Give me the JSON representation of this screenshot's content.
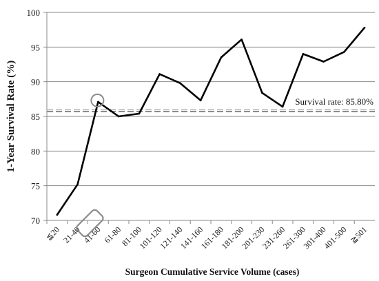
{
  "chart_data": {
    "type": "line",
    "xlabel": "Surgeon Cumulative Service Volume (cases)",
    "ylabel": "1-Year Survival Rate (%)",
    "ylim": [
      70,
      100
    ],
    "yticks": [
      "70",
      "75",
      "80",
      "85",
      "90",
      "95",
      "100"
    ],
    "grid": "horizontal",
    "categories": [
      "≦20",
      "21-40",
      "41-60",
      "61-80",
      "81-100",
      "101-120",
      "121-140",
      "141-160",
      "161-180",
      "181-200",
      "201-230",
      "231-260",
      "261-300",
      "301-400",
      "401-500",
      "≧501"
    ],
    "values": [
      70.8,
      75.2,
      87.1,
      85.0,
      85.4,
      91.1,
      89.8,
      87.3,
      93.5,
      96.1,
      88.4,
      86.4,
      94.0,
      92.9,
      94.3,
      97.8
    ],
    "series": [
      {
        "values": [
          70.8,
          75.2,
          87.1,
          85.0,
          85.4,
          91.1,
          89.8,
          87.3,
          93.5,
          96.1,
          88.4,
          86.4,
          94.0,
          92.9,
          94.3,
          97.8
        ],
        "color": "#000000"
      }
    ],
    "reference_line": {
      "value": 85.8,
      "label": "Survival rate:  85.80%",
      "color": "#8c8c8c",
      "style": "dashed"
    },
    "highlight": {
      "category": "41-60",
      "marker": "circle",
      "label_box": "rounded-rect",
      "color": "#8c8c8c"
    }
  }
}
